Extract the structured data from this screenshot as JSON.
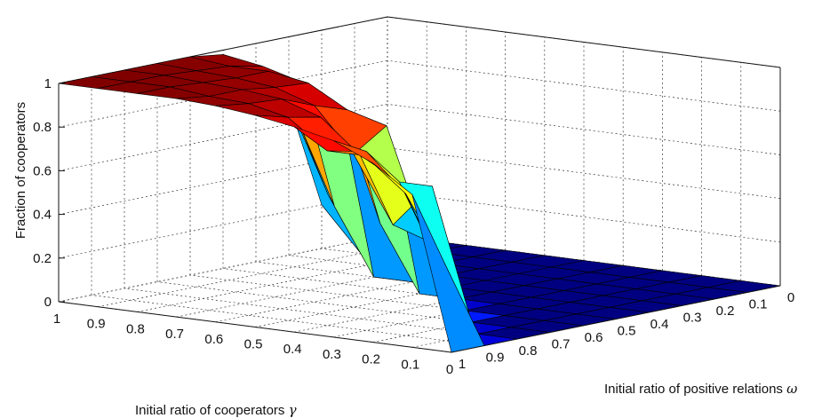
{
  "chart_data": {
    "type": "surface",
    "title": "",
    "xlabel": "Initial ratio of positive relations",
    "xlabel_symbol": "ω",
    "ylabel": "Initial ratio of cooperators",
    "ylabel_symbol": "γ",
    "zlabel": "Fraction of cooperators",
    "x": [
      0,
      0.1,
      0.2,
      0.3,
      0.4,
      0.5,
      0.6,
      0.7,
      0.8,
      0.9,
      1
    ],
    "y": [
      0,
      0.1,
      0.2,
      0.3,
      0.4,
      0.5,
      0.6,
      0.7,
      0.8,
      0.9,
      1
    ],
    "x_ticks": [
      "0",
      "0.1",
      "0.2",
      "0.3",
      "0.4",
      "0.5",
      "0.6",
      "0.7",
      "0.8",
      "0.9",
      "1"
    ],
    "y_ticks": [
      "0",
      "0.1",
      "0.2",
      "0.3",
      "0.4",
      "0.5",
      "0.6",
      "0.7",
      "0.8",
      "0.9",
      "1"
    ],
    "z_ticks": [
      "0",
      "0.2",
      "0.4",
      "0.6",
      "0.8",
      "1"
    ],
    "zlim": [
      0,
      1
    ],
    "colormap": "jet",
    "grid": true,
    "z_rows_by_gamma": [
      [
        0,
        0,
        0,
        0,
        0,
        0,
        0,
        0,
        0,
        0,
        0
      ],
      [
        0,
        0,
        0,
        0,
        0,
        0,
        0,
        0,
        0,
        0.35,
        0.7
      ],
      [
        0,
        0,
        0,
        0,
        0,
        0,
        0,
        0,
        0.3,
        0.65,
        0.82
      ],
      [
        0,
        0,
        0,
        0,
        0,
        0,
        0,
        0.6,
        0.65,
        0.82,
        0.9
      ],
      [
        0,
        0,
        0,
        0,
        0,
        0,
        0.3,
        0.4,
        0.75,
        0.8,
        0.94
      ],
      [
        0,
        0,
        0,
        0,
        0,
        0,
        0.8,
        0.7,
        0.9,
        0.93,
        0.97
      ],
      [
        0,
        0,
        0,
        0,
        0,
        0.3,
        0.85,
        0.9,
        0.96,
        0.97,
        0.99
      ],
      [
        0,
        0,
        0,
        0,
        0,
        0.8,
        0.95,
        0.96,
        0.98,
        0.98,
        1
      ],
      [
        0,
        0,
        0,
        0,
        0.3,
        0.9,
        0.98,
        0.98,
        0.99,
        1,
        1
      ],
      [
        0,
        0,
        0,
        0.3,
        0.7,
        0.95,
        0.98,
        0.99,
        1,
        1,
        1
      ],
      [
        0,
        0,
        0.2,
        0.7,
        0.9,
        0.98,
        1,
        1,
        1,
        1,
        1
      ]
    ]
  }
}
